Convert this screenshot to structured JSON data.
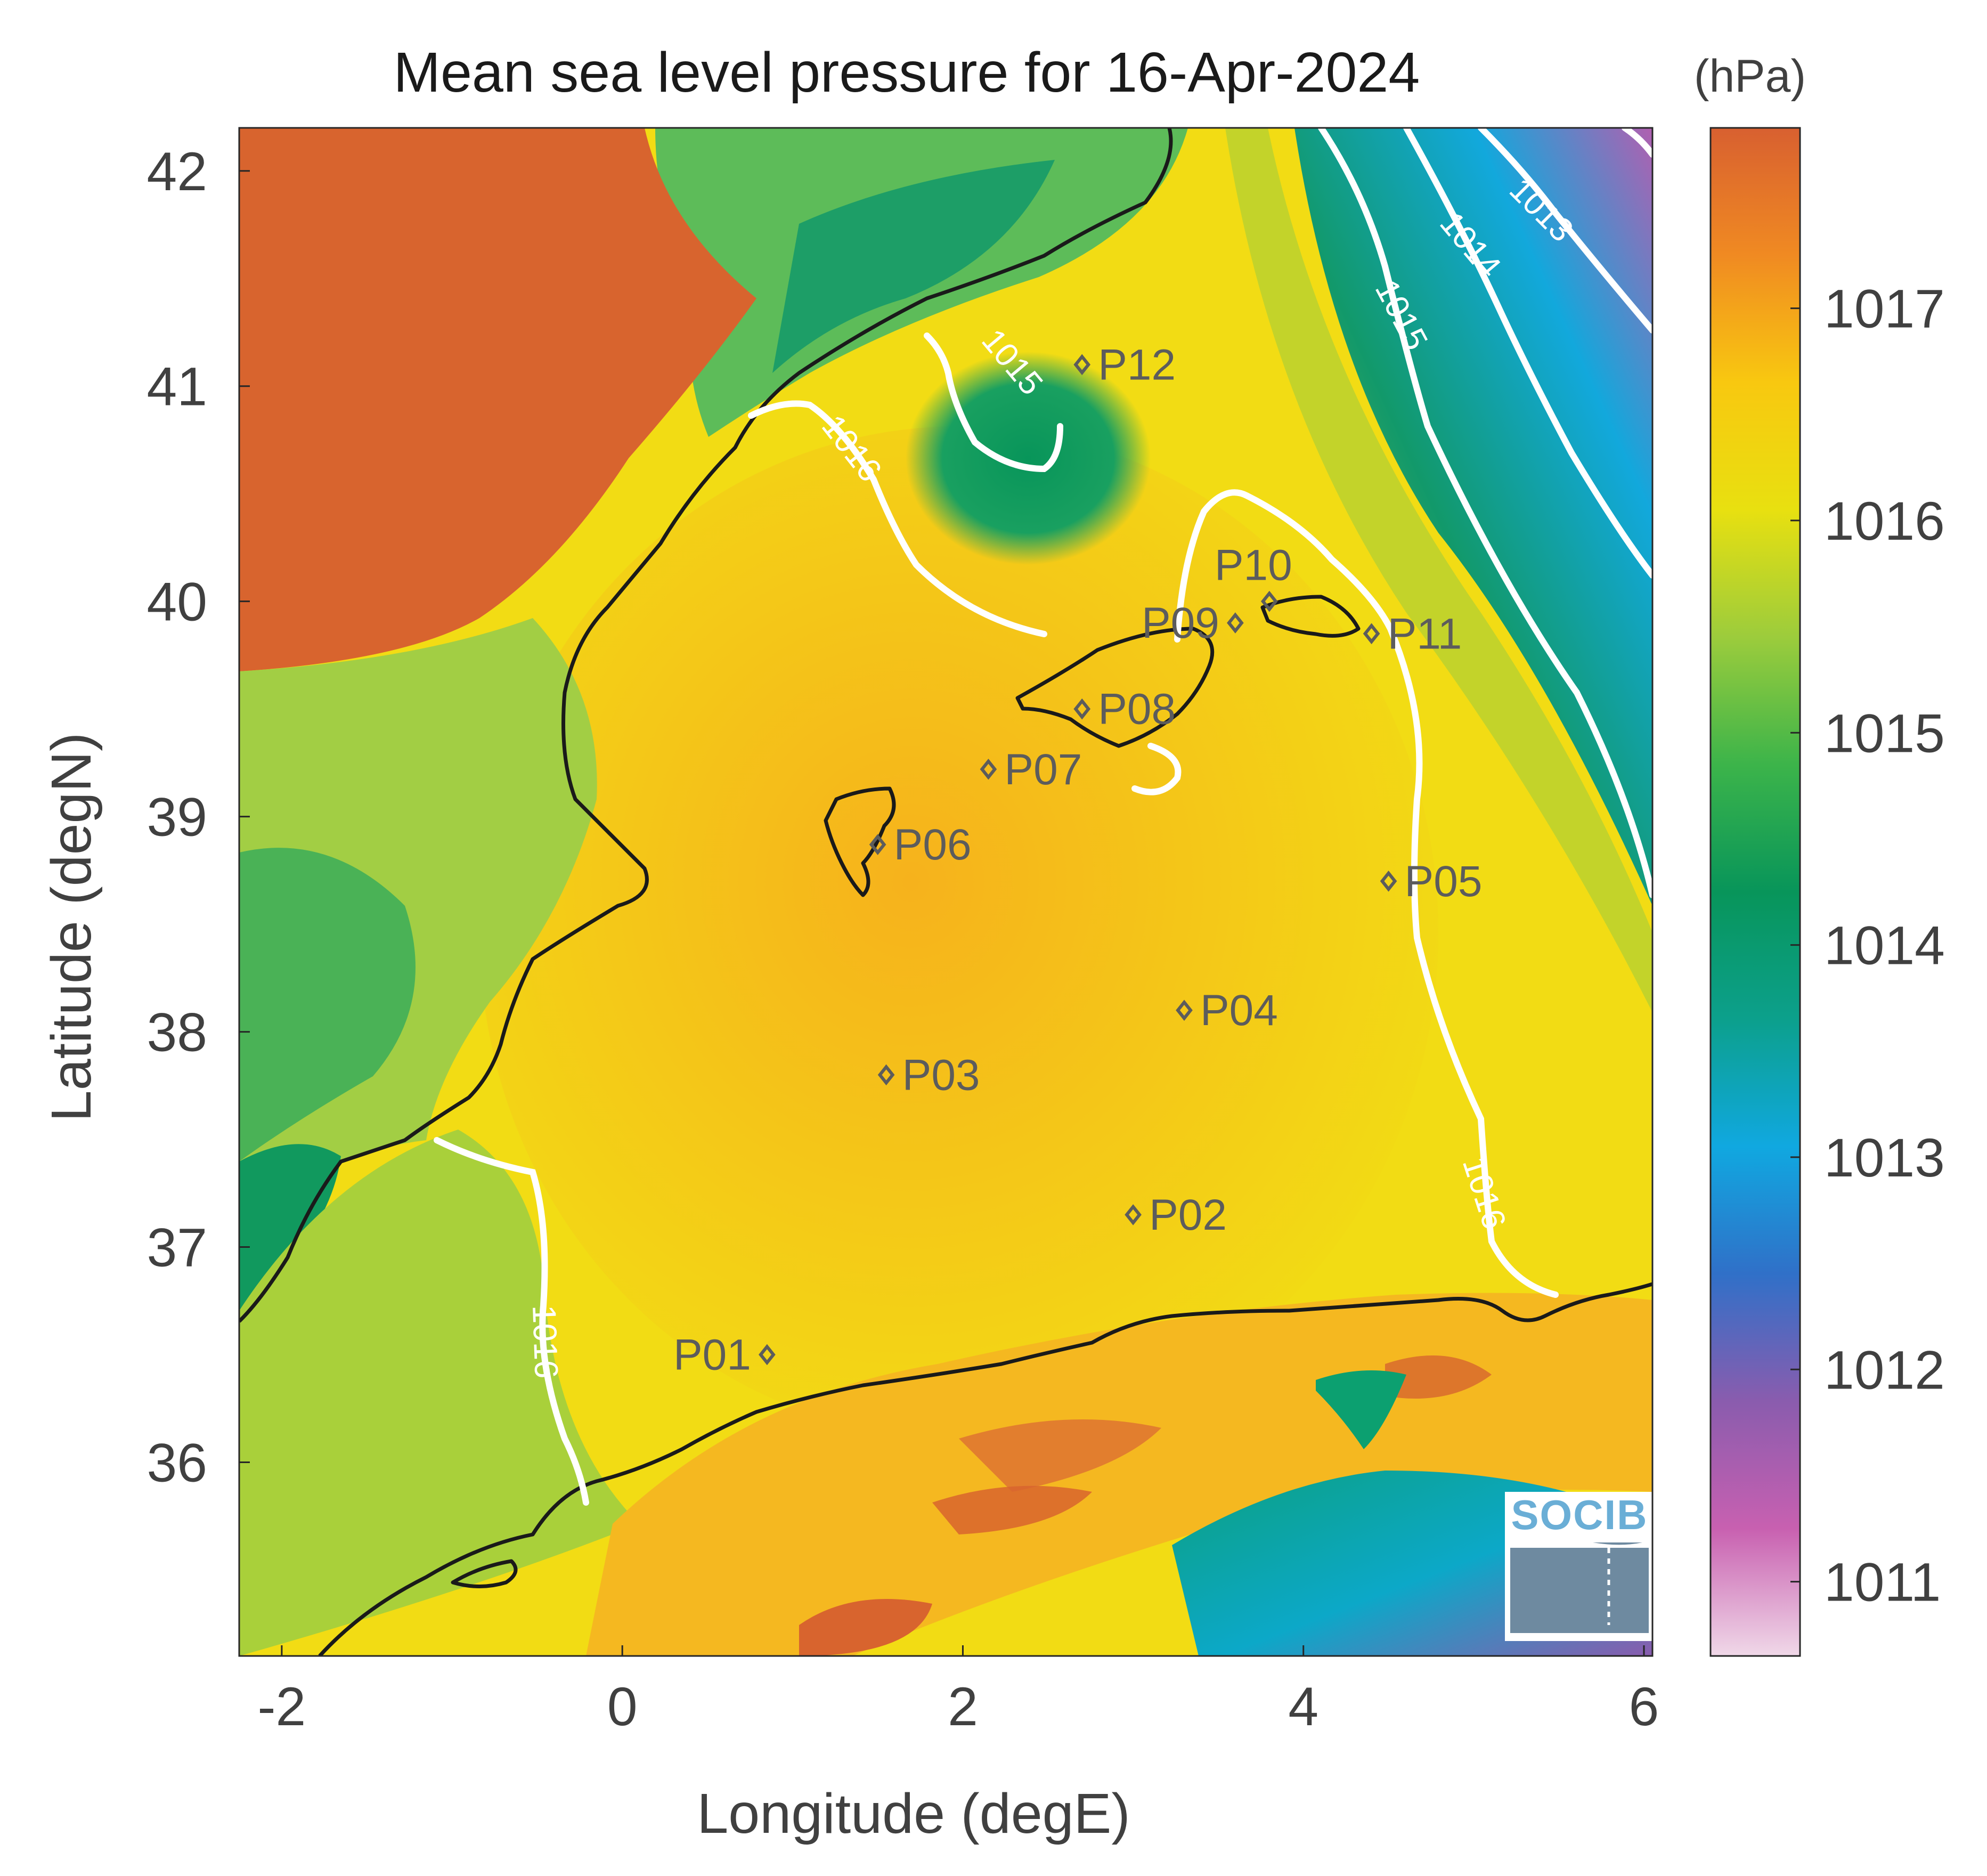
{
  "chart_data": {
    "type": "heatmap",
    "title": "Mean sea level pressure for 16-Apr-2024",
    "xlabel": "Longitude (degE)",
    "ylabel": "Latitude (degN)",
    "xlim": [
      -2.25,
      6.05
    ],
    "ylim": [
      35.1,
      42.2
    ],
    "x_ticks": [
      -2,
      0,
      2,
      4,
      6
    ],
    "x_tick_labels": [
      "-2",
      "0",
      "2",
      "4",
      "6"
    ],
    "y_ticks": [
      36,
      37,
      38,
      39,
      40,
      41,
      42
    ],
    "y_tick_labels": [
      "36",
      "37",
      "38",
      "39",
      "40",
      "41",
      "42"
    ],
    "colorbar": {
      "unit_label": "(hPa)",
      "range": [
        1010.65,
        1017.85
      ],
      "ticks": [
        1011,
        1012,
        1013,
        1014,
        1015,
        1016,
        1017
      ],
      "tick_labels": [
        "1011",
        "1012",
        "1013",
        "1014",
        "1015",
        "1016",
        "1017"
      ],
      "colors": [
        "#f0d8e8",
        "#c860b0",
        "#8a5cae",
        "#3070c8",
        "#10a8e0",
        "#0ca08c",
        "#08955a",
        "#3cb44a",
        "#9ccc3c",
        "#e8e010",
        "#f8c810",
        "#f08a22",
        "#d86030"
      ]
    },
    "contours": [
      {
        "level": 1013,
        "label": "1013"
      },
      {
        "level": 1014,
        "label": "1014"
      },
      {
        "level": 1015,
        "label": "1015"
      },
      {
        "level": 1016,
        "label": "1016"
      }
    ],
    "stations": [
      {
        "name": "P01",
        "lon": 0.85,
        "lat": 36.5
      },
      {
        "name": "P02",
        "lon": 3.0,
        "lat": 37.15
      },
      {
        "name": "P03",
        "lon": 1.55,
        "lat": 37.8
      },
      {
        "name": "P04",
        "lon": 3.3,
        "lat": 38.1
      },
      {
        "name": "P05",
        "lon": 4.5,
        "lat": 38.7
      },
      {
        "name": "P06",
        "lon": 1.5,
        "lat": 38.87
      },
      {
        "name": "P07",
        "lon": 2.15,
        "lat": 39.22
      },
      {
        "name": "P08",
        "lon": 2.7,
        "lat": 39.5
      },
      {
        "name": "P09",
        "lon": 3.6,
        "lat": 39.9
      },
      {
        "name": "P10",
        "lon": 3.8,
        "lat": 40.0
      },
      {
        "name": "P11",
        "lon": 4.4,
        "lat": 39.85
      },
      {
        "name": "P12",
        "lon": 2.7,
        "lat": 41.1
      }
    ],
    "grid": false
  },
  "logo": {
    "text": "SOCIB"
  },
  "colors": {
    "coastline": "#1a1a1a",
    "contour": "#ffffff",
    "station_marker": "#5c5c5c"
  }
}
